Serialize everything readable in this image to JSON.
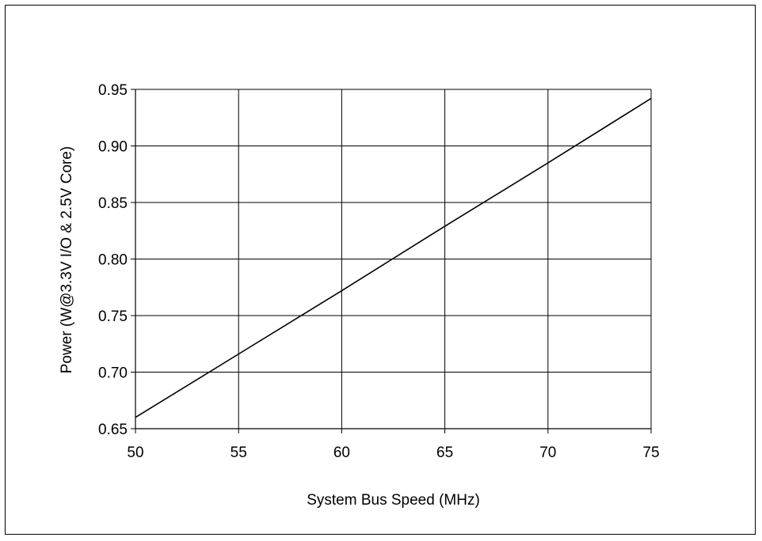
{
  "chart_data": {
    "type": "line",
    "title": "",
    "xlabel": "System Bus Speed (MHz)",
    "ylabel": "Power (W@3.3V I/O & 2.5V Core)",
    "xlim": [
      50,
      75
    ],
    "ylim": [
      0.65,
      0.95
    ],
    "x_ticks": [
      "50",
      "55",
      "60",
      "65",
      "70",
      "75"
    ],
    "y_ticks": [
      "0.65",
      "0.70",
      "0.75",
      "0.80",
      "0.85",
      "0.90",
      "0.95"
    ],
    "grid": true,
    "legend": "none",
    "series": [
      {
        "x": [
          50,
          55,
          60,
          65,
          70,
          75
        ],
        "y": [
          0.66,
          0.716,
          0.772,
          0.829,
          0.885,
          0.942
        ]
      }
    ],
    "colors": {
      "line": "#000000",
      "grid": "#000000",
      "background": "#ffffff"
    }
  }
}
